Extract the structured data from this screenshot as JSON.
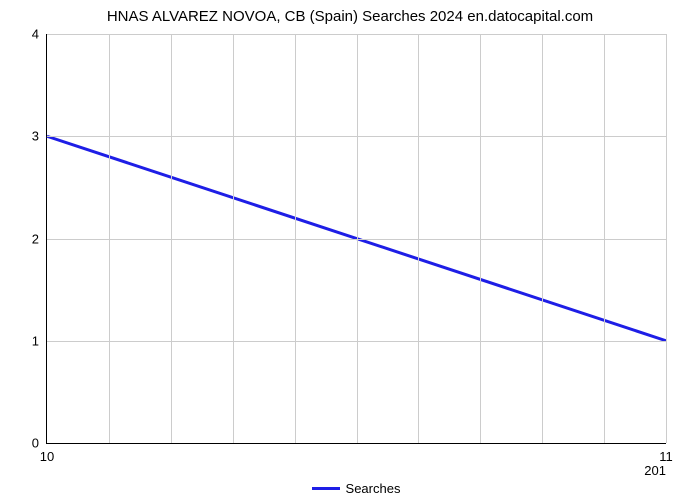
{
  "chart": {
    "type": "line",
    "title": "HNAS ALVAREZ NOVOA, CB (Spain) Searches 2024 en.datocapital.com",
    "title_fontsize": 15,
    "background_color": "#ffffff",
    "grid_color": "#cccccc",
    "axis_color": "#000000",
    "text_color": "#000000",
    "ylabel_fontsize": 13,
    "xlabel_fontsize": 13,
    "x_ticks": [
      "10",
      "11"
    ],
    "x_minor_count": 9,
    "x_right_sub": "201",
    "y_ticks": [
      "0",
      "1",
      "2",
      "3",
      "4"
    ],
    "ylim": [
      0,
      4
    ],
    "series": {
      "name": "Searches",
      "color": "#1e1ee6",
      "line_width": 3,
      "points": [
        {
          "x": 0.0,
          "y": 3.0
        },
        {
          "x": 1.0,
          "y": 1.0
        }
      ]
    },
    "legend": {
      "label": "Searches",
      "swatch_color": "#1e1ee6"
    }
  }
}
